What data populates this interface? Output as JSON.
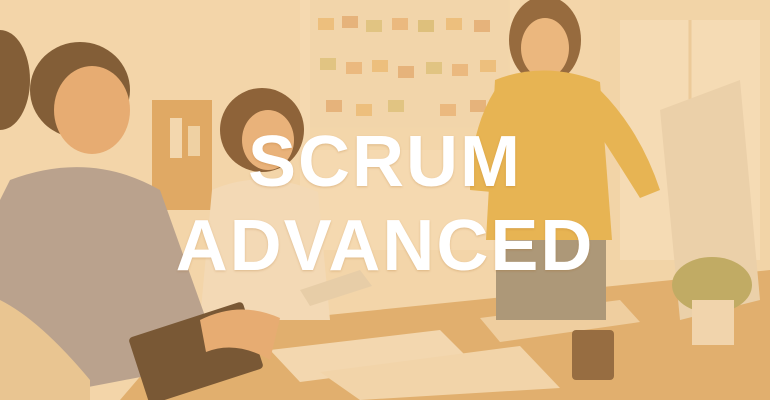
{
  "banner": {
    "title_line_1": "SCRUM",
    "title_line_2": "ADVANCED",
    "overlay_color": "#f0b45a",
    "text_color": "#ffffff"
  }
}
